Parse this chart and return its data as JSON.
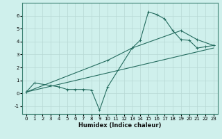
{
  "xlabel": "Humidex (Indice chaleur)",
  "bg_color": "#cff0ec",
  "grid_color": "#b8d8d4",
  "line_color": "#236b5e",
  "xlim": [
    -0.5,
    23.5
  ],
  "ylim": [
    -1.6,
    7.0
  ],
  "yticks": [
    -1,
    0,
    1,
    2,
    3,
    4,
    5,
    6
  ],
  "xticks": [
    0,
    1,
    2,
    3,
    4,
    5,
    6,
    7,
    8,
    9,
    10,
    11,
    12,
    13,
    14,
    15,
    16,
    17,
    18,
    19,
    20,
    21,
    22,
    23
  ],
  "line1_x": [
    0,
    1,
    3,
    4,
    5,
    6,
    7,
    8,
    9,
    10,
    13,
    14,
    15,
    16,
    17,
    18,
    19,
    20,
    21,
    22,
    23
  ],
  "line1_y": [
    0.1,
    0.8,
    0.6,
    0.5,
    0.3,
    0.3,
    0.3,
    0.25,
    -1.3,
    0.5,
    3.5,
    4.1,
    6.3,
    6.1,
    5.75,
    4.85,
    4.15,
    4.1,
    3.5,
    3.6,
    3.7
  ],
  "line2_x": [
    0,
    10,
    13,
    19,
    21,
    23
  ],
  "line2_y": [
    0.1,
    2.55,
    3.5,
    4.85,
    4.15,
    3.7
  ],
  "line3_x": [
    0,
    23
  ],
  "line3_y": [
    0.1,
    3.5
  ]
}
